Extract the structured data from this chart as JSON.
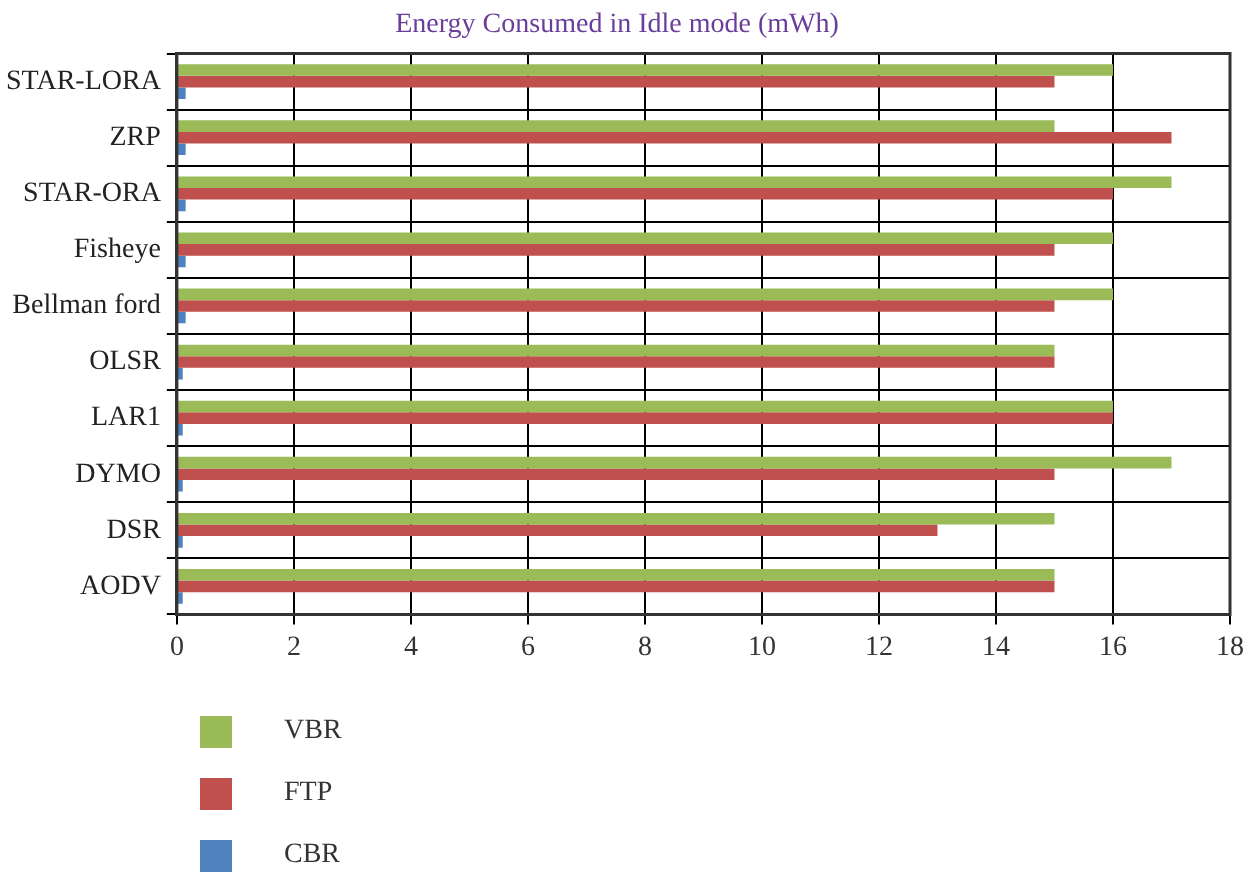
{
  "chart_data": {
    "type": "bar",
    "orientation": "horizontal",
    "title": "Energy Consumed in Idle mode (mWh)",
    "categories": [
      "STAR-LORA",
      "ZRP",
      "STAR-ORA",
      "Fisheye",
      "Bellman ford",
      "OLSR",
      "LAR1",
      "DYMO",
      "DSR",
      "AODV"
    ],
    "series": [
      {
        "name": "VBR",
        "color": "#9bbb59",
        "values": [
          16,
          15,
          17,
          16,
          16,
          15,
          16,
          17,
          15,
          15
        ]
      },
      {
        "name": "FTP",
        "color": "#c0504d",
        "values": [
          15,
          17,
          16,
          15,
          15,
          15,
          16,
          15,
          13,
          15
        ]
      },
      {
        "name": "CBR",
        "color": "#4f81bd",
        "values": [
          0.15,
          0.15,
          0.15,
          0.15,
          0.15,
          0.1,
          0.1,
          0.1,
          0.1,
          0.1
        ]
      }
    ],
    "xlim": [
      0,
      18
    ],
    "xticks": [
      0,
      2,
      4,
      6,
      8,
      10,
      12,
      14,
      16,
      18
    ],
    "grid": true,
    "legend": "bottom left"
  }
}
